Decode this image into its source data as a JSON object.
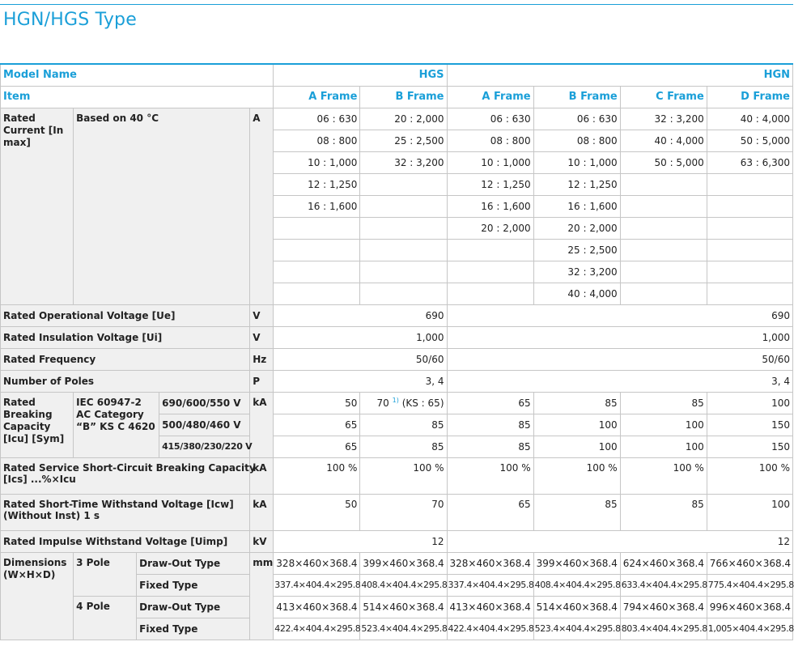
{
  "title": "HGN/HGS Type",
  "header": {
    "model_name": "Model Name",
    "hgs": "HGS",
    "hgn": "HGN",
    "item": "Item",
    "frames": [
      "A Frame",
      "B Frame",
      "A Frame",
      "B Frame",
      "C Frame",
      "D Frame"
    ]
  },
  "rated_current": {
    "label": "Rated Current [In max]",
    "condition": "Based on 40 °C",
    "unit": "A",
    "rows": [
      [
        "06 : 630",
        "20 : 2,000",
        "06 : 630",
        "06 : 630",
        "32 : 3,200",
        "40 : 4,000"
      ],
      [
        "08 : 800",
        "25 : 2,500",
        "08 : 800",
        "08 : 800",
        "40 : 4,000",
        "50 : 5,000"
      ],
      [
        "10 : 1,000",
        "32 : 3,200",
        "10 : 1,000",
        "10 : 1,000",
        "50 : 5,000",
        "63 : 6,300"
      ],
      [
        "12 : 1,250",
        "",
        "12 : 1,250",
        "12 : 1,250",
        "",
        ""
      ],
      [
        "16 : 1,600",
        "",
        "16 : 1,600",
        "16 : 1,600",
        "",
        ""
      ],
      [
        "",
        "",
        "20 : 2,000",
        "20 : 2,000",
        "",
        ""
      ],
      [
        "",
        "",
        "",
        "25 : 2,500",
        "",
        ""
      ],
      [
        "",
        "",
        "",
        "32 : 3,200",
        "",
        ""
      ],
      [
        "",
        "",
        "",
        "40 : 4,000",
        "",
        ""
      ]
    ]
  },
  "operational_voltage": {
    "label": "Rated Operational Voltage [Ue]",
    "unit": "V",
    "hgs": "690",
    "hgn": "690"
  },
  "insulation_voltage": {
    "label": "Rated Insulation Voltage [Ui]",
    "unit": "V",
    "hgs": "1,000",
    "hgn": "1,000"
  },
  "frequency": {
    "label": "Rated Frequency",
    "unit": "Hz",
    "hgs": "50/60",
    "hgn": "50/60"
  },
  "poles": {
    "label": "Number of Poles",
    "unit": "P",
    "hgs": "3, 4",
    "hgn": "3, 4"
  },
  "breaking": {
    "label": "Rated Breaking Capacity [Icu] [Sym]",
    "standard": "IEC 60947-2 AC Category “B” KS C 4620",
    "unit": "kA",
    "voltages": [
      "690/600/550 V",
      "500/480/460 V",
      "415/380/230/220 V"
    ],
    "rows": [
      [
        "50",
        "70",
        "65",
        "85",
        "85",
        "100"
      ],
      [
        "65",
        "85",
        "85",
        "100",
        "100",
        "150"
      ],
      [
        "65",
        "85",
        "85",
        "100",
        "100",
        "150"
      ]
    ],
    "footnote_mark": "1)",
    "note": "(KS : 65)"
  },
  "service_breaking": {
    "label_1": "Rated Service Short-Circuit Breaking Capacity",
    "label_2": "[Ics] ...%×Icu",
    "unit": "kA",
    "values": [
      "100 %",
      "100 %",
      "100 %",
      "100 %",
      "100 %",
      "100 %"
    ]
  },
  "short_time": {
    "label_1": "Rated Short-Time Withstand Voltage [Icw]",
    "label_2": "(Without Inst) 1 s",
    "unit": "kA",
    "values": [
      "50",
      "70",
      "65",
      "85",
      "85",
      "100"
    ]
  },
  "impulse": {
    "label": "Rated Impulse Withstand Voltage [Uimp]",
    "unit": "kV",
    "hgs": "12",
    "hgn": "12"
  },
  "dimensions": {
    "label": "Dimensions (W×H×D)",
    "unit": "mm",
    "pole3": "3 Pole",
    "pole4": "4 Pole",
    "drawout": "Draw-Out Type",
    "fixed": "Fixed Type",
    "p3_drawout": [
      "328×460×368.4",
      "399×460×368.4",
      "328×460×368.4",
      "399×460×368.4",
      "624×460×368.4",
      "766×460×368.4"
    ],
    "p3_fixed": [
      "337.4×404.4×295.8",
      "408.4×404.4×295.8",
      "337.4×404.4×295.8",
      "408.4×404.4×295.8",
      "633.4×404.4×295.8",
      "775.4×404.4×295.8"
    ],
    "p4_drawout": [
      "413×460×368.4",
      "514×460×368.4",
      "413×460×368.4",
      "514×460×368.4",
      "794×460×368.4",
      "996×460×368.4"
    ],
    "p4_fixed": [
      "422.4×404.4×295.8",
      "523.4×404.4×295.8",
      "422.4×404.4×295.8",
      "523.4×404.4×295.8",
      "803.4×404.4×295.8",
      "1,005×404.4×295.8"
    ]
  }
}
